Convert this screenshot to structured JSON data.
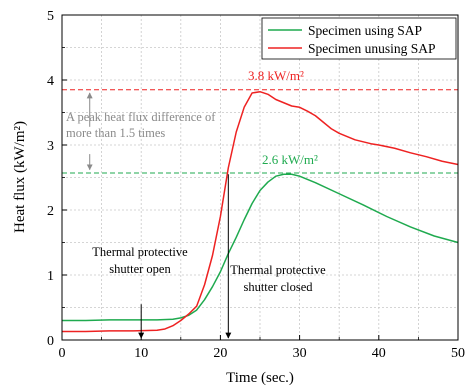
{
  "colors": {
    "green": "#1faa4f",
    "red": "#ee2222",
    "gray": "#8a8a8a",
    "grid": "#c8c8c8"
  },
  "chart_data": {
    "type": "line",
    "xlabel": "Time (sec.)",
    "ylabel": "Heat flux (kW/m²)",
    "xlim": [
      0,
      50
    ],
    "ylim": [
      0,
      5
    ],
    "xticks": [
      0,
      10,
      20,
      30,
      40,
      50
    ],
    "yticks": [
      0,
      1,
      2,
      3,
      4,
      5
    ],
    "grid": true,
    "legend_position": "top-right",
    "series": [
      {
        "name": "Specimen using SAP",
        "color": "#1faa4f",
        "x": [
          0,
          3,
          6,
          9,
          12,
          14,
          15,
          16,
          17,
          18,
          19,
          20,
          21,
          22,
          23,
          24,
          25,
          26,
          27,
          28,
          29,
          30,
          32,
          35,
          38,
          41,
          44,
          47,
          50
        ],
        "y": [
          0.3,
          0.3,
          0.31,
          0.31,
          0.31,
          0.32,
          0.34,
          0.38,
          0.46,
          0.62,
          0.82,
          1.05,
          1.33,
          1.58,
          1.85,
          2.1,
          2.3,
          2.43,
          2.52,
          2.55,
          2.55,
          2.52,
          2.42,
          2.25,
          2.08,
          1.9,
          1.74,
          1.6,
          1.5
        ]
      },
      {
        "name": "Specimen unusing SAP",
        "color": "#ee2222",
        "x": [
          0,
          3,
          6,
          9,
          12,
          13,
          14,
          15,
          16,
          17,
          18,
          19,
          20,
          21,
          22,
          23,
          24,
          25,
          26,
          27,
          28,
          29,
          30,
          31,
          32,
          33,
          34,
          35,
          37,
          39,
          40,
          42,
          44,
          46,
          48,
          50
        ],
        "y": [
          0.13,
          0.13,
          0.14,
          0.14,
          0.15,
          0.17,
          0.22,
          0.3,
          0.4,
          0.52,
          0.85,
          1.3,
          1.9,
          2.65,
          3.2,
          3.58,
          3.8,
          3.82,
          3.78,
          3.7,
          3.65,
          3.6,
          3.58,
          3.52,
          3.45,
          3.35,
          3.25,
          3.18,
          3.08,
          3.02,
          3.0,
          2.95,
          2.88,
          2.82,
          2.75,
          2.7
        ]
      }
    ],
    "reference_lines": [
      {
        "y": 3.85,
        "color": "#ee2222",
        "label": "3.8 kW/m²"
      },
      {
        "y": 2.57,
        "color": "#1faa4f",
        "label": "2.6 kW/m²"
      }
    ],
    "annotations": {
      "gap_text_line1": "A peak heat flux difference of",
      "gap_text_line2": "more than 1.5 times",
      "open_line1": "Thermal protective",
      "open_line2": "shutter open",
      "closed_line1": "Thermal protective",
      "closed_line2": "shutter closed",
      "open_x": 10,
      "closed_x": 21
    }
  }
}
